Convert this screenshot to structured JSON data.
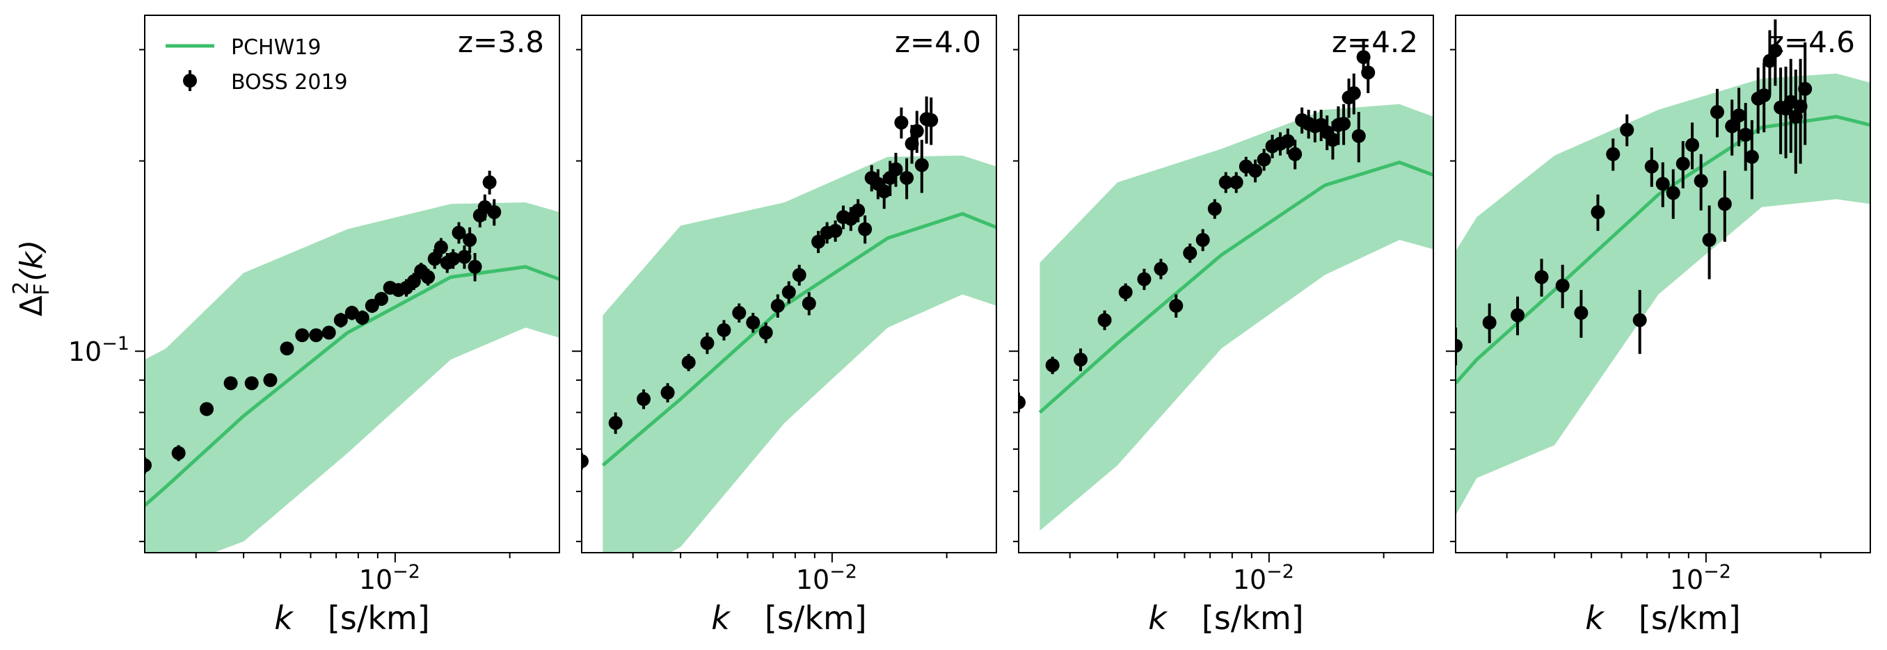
{
  "figure": {
    "ylabel_main": "Δ",
    "ylabel_sup": "2",
    "ylabel_sub": "F",
    "ylabel_tail": "(k)",
    "xlabel_var": "k",
    "xlabel_unit": "[s/km]",
    "xtick_base": "10",
    "xtick_exp": "−2",
    "ytick_base": "10",
    "ytick_exp": "−1",
    "legend": {
      "model_label": "PCHW19",
      "data_label": "BOSS 2019"
    },
    "colors": {
      "model_line": "#3dbf6b",
      "model_band": "#a3dfba",
      "data": "#000000"
    }
  },
  "chart_data": [
    {
      "type": "line",
      "panel_label": "z=3.8",
      "x_scale": "log",
      "y_scale": "log",
      "xlim": [
        0.0022,
        0.027
      ],
      "ylim": [
        0.048,
        0.34
      ],
      "model": {
        "name": "PCHW19",
        "x": [
          0.0022,
          0.0025,
          0.004,
          0.0075,
          0.014,
          0.022,
          0.027
        ],
        "y": [
          0.057,
          0.061,
          0.079,
          0.107,
          0.131,
          0.136,
          0.13
        ],
        "lo": [
          0.042,
          0.045,
          0.05,
          0.069,
          0.097,
          0.109,
          0.105
        ],
        "hi": [
          0.097,
          0.101,
          0.133,
          0.156,
          0.171,
          0.172,
          0.166
        ]
      },
      "data": {
        "name": "BOSS 2019",
        "x": [
          0.0022,
          0.0027,
          0.0032,
          0.0037,
          0.0042,
          0.0047,
          0.0052,
          0.0057,
          0.0062,
          0.0067,
          0.0072,
          0.0077,
          0.0082,
          0.0087,
          0.0092,
          0.0097,
          0.0102,
          0.0107,
          0.0112,
          0.0117,
          0.0122,
          0.0127,
          0.0132,
          0.0137,
          0.0142,
          0.0147,
          0.0152,
          0.0157,
          0.0162,
          0.0167,
          0.0172,
          0.0177,
          0.0182
        ],
        "y": [
          0.066,
          0.069,
          0.081,
          0.089,
          0.089,
          0.09,
          0.101,
          0.106,
          0.106,
          0.107,
          0.112,
          0.115,
          0.113,
          0.118,
          0.121,
          0.126,
          0.125,
          0.126,
          0.129,
          0.134,
          0.131,
          0.14,
          0.146,
          0.138,
          0.14,
          0.154,
          0.141,
          0.15,
          0.136,
          0.164,
          0.169,
          0.185,
          0.166
        ],
        "err": [
          0.002,
          0.002,
          0.002,
          0.002,
          0.002,
          0.002,
          0.002,
          0.002,
          0.002,
          0.002,
          0.003,
          0.003,
          0.003,
          0.003,
          0.003,
          0.003,
          0.003,
          0.004,
          0.004,
          0.004,
          0.004,
          0.005,
          0.005,
          0.005,
          0.005,
          0.006,
          0.006,
          0.007,
          0.007,
          0.007,
          0.008,
          0.008,
          0.008
        ]
      }
    },
    {
      "type": "line",
      "panel_label": "z=4.0",
      "x_scale": "log",
      "y_scale": "log",
      "xlim": [
        0.0022,
        0.027
      ],
      "ylim": [
        0.048,
        0.34
      ],
      "model": {
        "name": "PCHW19",
        "x": [
          0.0025,
          0.004,
          0.0075,
          0.014,
          0.022,
          0.027
        ],
        "y": [
          0.066,
          0.084,
          0.118,
          0.151,
          0.165,
          0.157
        ],
        "lo": [
          0.042,
          0.049,
          0.077,
          0.109,
          0.123,
          0.118
        ],
        "hi": [
          0.114,
          0.158,
          0.172,
          0.203,
          0.204,
          0.196
        ]
      },
      "data": {
        "name": "BOSS 2019",
        "x": [
          0.0022,
          0.0027,
          0.0032,
          0.0037,
          0.0042,
          0.0047,
          0.0052,
          0.0057,
          0.0062,
          0.0067,
          0.0072,
          0.0077,
          0.0082,
          0.0087,
          0.0092,
          0.0097,
          0.0102,
          0.0107,
          0.0112,
          0.0117,
          0.0122,
          0.0127,
          0.0132,
          0.0137,
          0.0142,
          0.0147,
          0.0152,
          0.0157,
          0.0162,
          0.0167,
          0.0172,
          0.0177,
          0.0182
        ],
        "y": [
          0.067,
          0.077,
          0.084,
          0.086,
          0.096,
          0.103,
          0.108,
          0.115,
          0.111,
          0.107,
          0.118,
          0.124,
          0.132,
          0.119,
          0.149,
          0.154,
          0.155,
          0.163,
          0.162,
          0.167,
          0.156,
          0.188,
          0.184,
          0.179,
          0.188,
          0.194,
          0.23,
          0.188,
          0.213,
          0.223,
          0.197,
          0.233,
          0.232
        ],
        "err": [
          0.002,
          0.003,
          0.003,
          0.003,
          0.003,
          0.004,
          0.004,
          0.004,
          0.004,
          0.004,
          0.005,
          0.005,
          0.005,
          0.005,
          0.006,
          0.006,
          0.006,
          0.007,
          0.007,
          0.007,
          0.008,
          0.009,
          0.01,
          0.011,
          0.012,
          0.012,
          0.013,
          0.014,
          0.015,
          0.017,
          0.019,
          0.02,
          0.02
        ]
      }
    },
    {
      "type": "line",
      "panel_label": "z=4.2",
      "x_scale": "log",
      "y_scale": "log",
      "xlim": [
        0.0022,
        0.027
      ],
      "ylim": [
        0.048,
        0.34
      ],
      "model": {
        "name": "PCHW19",
        "x": [
          0.0025,
          0.004,
          0.0075,
          0.014,
          0.022,
          0.027
        ],
        "y": [
          0.08,
          0.103,
          0.142,
          0.183,
          0.199,
          0.19
        ],
        "lo": [
          0.052,
          0.066,
          0.101,
          0.132,
          0.15,
          0.145
        ],
        "hi": [
          0.138,
          0.185,
          0.209,
          0.241,
          0.246,
          0.235
        ]
      },
      "data": {
        "name": "BOSS 2019",
        "x": [
          0.0022,
          0.0027,
          0.0032,
          0.0037,
          0.0042,
          0.0047,
          0.0052,
          0.0057,
          0.0062,
          0.0067,
          0.0072,
          0.0077,
          0.0082,
          0.0087,
          0.0092,
          0.0097,
          0.0102,
          0.0107,
          0.0112,
          0.0117,
          0.0122,
          0.0127,
          0.0132,
          0.0137,
          0.0142,
          0.0147,
          0.0152,
          0.0157,
          0.0162,
          0.0167,
          0.0172,
          0.0177,
          0.0182
        ],
        "y": [
          0.083,
          0.095,
          0.097,
          0.112,
          0.124,
          0.13,
          0.135,
          0.118,
          0.143,
          0.15,
          0.168,
          0.185,
          0.185,
          0.196,
          0.193,
          0.201,
          0.211,
          0.213,
          0.215,
          0.205,
          0.232,
          0.229,
          0.227,
          0.228,
          0.222,
          0.216,
          0.228,
          0.229,
          0.252,
          0.256,
          0.219,
          0.292,
          0.276
        ],
        "err": [
          0.003,
          0.003,
          0.004,
          0.004,
          0.004,
          0.005,
          0.005,
          0.005,
          0.005,
          0.006,
          0.006,
          0.007,
          0.007,
          0.007,
          0.008,
          0.008,
          0.009,
          0.009,
          0.01,
          0.011,
          0.011,
          0.012,
          0.013,
          0.013,
          0.014,
          0.015,
          0.016,
          0.017,
          0.018,
          0.019,
          0.02,
          0.02,
          0.02
        ]
      }
    },
    {
      "type": "line",
      "panel_label": "z=4.6",
      "x_scale": "log",
      "y_scale": "log",
      "xlim": [
        0.0022,
        0.027
      ],
      "ylim": [
        0.048,
        0.34
      ],
      "model": {
        "name": "PCHW19",
        "x": [
          0.0022,
          0.0025,
          0.004,
          0.0075,
          0.014,
          0.022,
          0.027
        ],
        "y": [
          0.089,
          0.097,
          0.125,
          0.177,
          0.226,
          0.235,
          0.228
        ],
        "lo": [
          0.055,
          0.063,
          0.071,
          0.123,
          0.169,
          0.174,
          0.171
        ],
        "hi": [
          0.144,
          0.163,
          0.204,
          0.241,
          0.27,
          0.275,
          0.266
        ]
      },
      "data": {
        "name": "BOSS 2019",
        "x": [
          0.0022,
          0.0027,
          0.0032,
          0.0037,
          0.0042,
          0.0047,
          0.0052,
          0.0057,
          0.0062,
          0.0067,
          0.0072,
          0.0077,
          0.0082,
          0.0087,
          0.0092,
          0.0097,
          0.0102,
          0.0107,
          0.0112,
          0.0117,
          0.0122,
          0.0127,
          0.0132,
          0.0137,
          0.0142,
          0.0147,
          0.0152,
          0.0157,
          0.0162,
          0.0167,
          0.0172,
          0.0177,
          0.0182
        ],
        "y": [
          0.102,
          0.111,
          0.114,
          0.131,
          0.127,
          0.115,
          0.166,
          0.205,
          0.224,
          0.112,
          0.196,
          0.184,
          0.178,
          0.198,
          0.212,
          0.186,
          0.15,
          0.239,
          0.171,
          0.227,
          0.236,
          0.22,
          0.203,
          0.251,
          0.254,
          0.288,
          0.299,
          0.243,
          0.242,
          0.248,
          0.235,
          0.244,
          0.26
        ],
        "err": [
          0.007,
          0.008,
          0.008,
          0.009,
          0.01,
          0.01,
          0.011,
          0.012,
          0.013,
          0.013,
          0.014,
          0.015,
          0.016,
          0.017,
          0.018,
          0.019,
          0.02,
          0.021,
          0.022,
          0.023,
          0.025,
          0.027,
          0.029,
          0.03,
          0.032,
          0.034,
          0.036,
          0.038,
          0.04,
          0.042,
          0.044,
          0.046,
          0.048
        ]
      }
    }
  ]
}
